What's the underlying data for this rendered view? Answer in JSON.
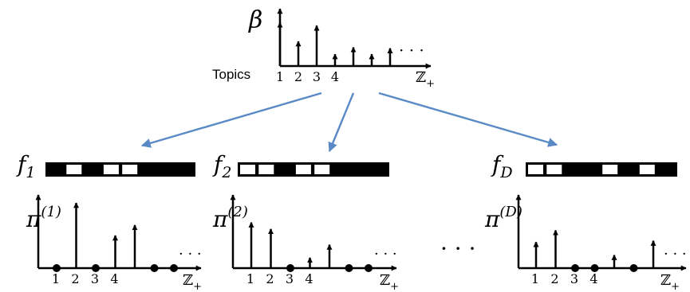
{
  "top": {
    "symbol": "β",
    "label": "Topics",
    "ticks": [
      "1",
      "2",
      "3",
      "4"
    ],
    "axis_label": "ℤ",
    "axis_label_sub": "+",
    "ellipsis": "· · ·",
    "spikes": [
      0.88,
      0.5,
      0.82,
      0.24,
      0.38,
      0.24,
      0.36
    ]
  },
  "colors": {
    "arrow": "#5a8ac6",
    "ink": "#000000",
    "bar_dark": "#000000",
    "bar_light": "#ffffff"
  },
  "features": [
    {
      "symbol": "f",
      "subscript": "1",
      "pattern": [
        1,
        0,
        1,
        0,
        0,
        1,
        1,
        1,
        1
      ]
    },
    {
      "symbol": "f",
      "subscript": "2",
      "pattern": [
        0,
        0,
        1,
        0,
        0,
        1,
        1,
        1,
        1
      ]
    },
    {
      "symbol": "f",
      "subscript": "D",
      "pattern": [
        0,
        0,
        1,
        1,
        0,
        1,
        0,
        1,
        1
      ]
    }
  ],
  "docs": [
    {
      "symbol": "π",
      "superscript": "(1)",
      "ticks": [
        "1",
        "2",
        "3",
        "4"
      ],
      "axis_label": "ℤ",
      "axis_label_sub": "+",
      "ellipsis": "· · ·",
      "spikes": [
        0,
        1.0,
        0,
        0.5,
        0.66,
        0,
        0
      ]
    },
    {
      "symbol": "π",
      "superscript": "(2)",
      "ticks": [
        "1",
        "2",
        "3",
        "4"
      ],
      "axis_label": "ℤ",
      "axis_label_sub": "+",
      "ellipsis": "· · ·",
      "spikes": [
        0.7,
        0.6,
        0,
        0.16,
        0.36,
        0,
        0
      ]
    },
    {
      "symbol": "π",
      "superscript": "(D)",
      "ticks": [
        "1",
        "2",
        "3",
        "4"
      ],
      "axis_label": "ℤ",
      "axis_label_sub": "+",
      "ellipsis": "· · ·",
      "spikes": [
        0.4,
        0.58,
        0,
        0,
        0.2,
        0,
        0.42
      ]
    }
  ],
  "middle_ellipsis": "· · ·"
}
